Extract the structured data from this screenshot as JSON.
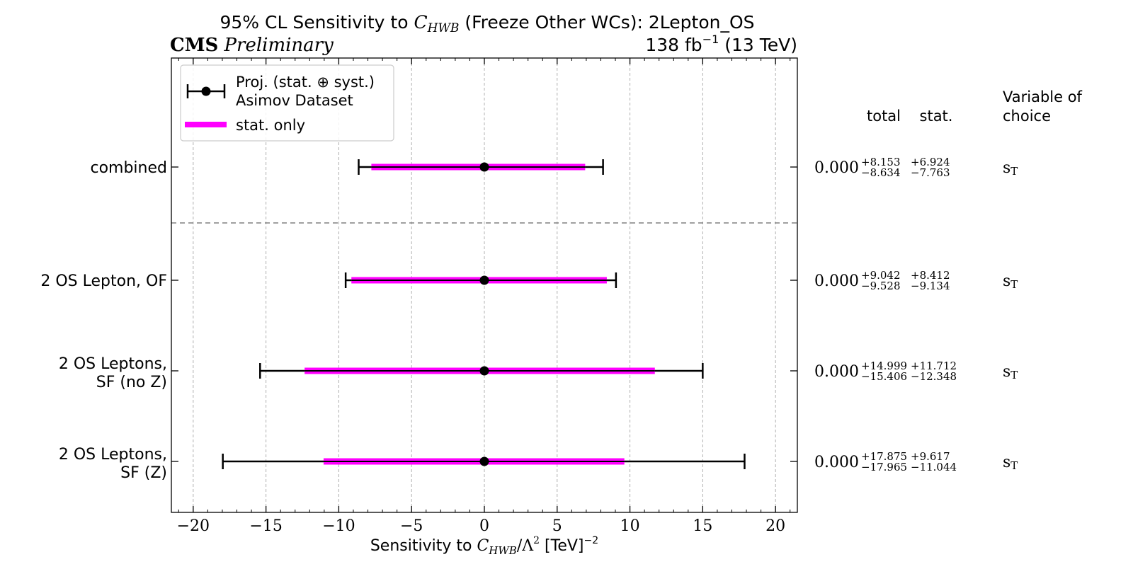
{
  "chart_data": {
    "type": "errorbar",
    "title_prefix": "95% CL Sensitivity to ",
    "title_symbol": "C",
    "title_symbol_sub": "HWB",
    "title_suffix": " (Freeze Other WCs): 2Lepton_OS",
    "experiment_label": "CMS",
    "status_label": "Preliminary",
    "lumi_value": "138 fb",
    "lumi_exponent": "−1",
    "lumi_energy": " (13 TeV)",
    "xlabel_prefix": "Sensitivity to ",
    "xlabel_symbol": "C",
    "xlabel_symbol_sub": "HWB",
    "xlabel_middle": "/Λ",
    "xlabel_power": "2",
    "xlabel_unit": " [TeV]",
    "xlabel_unit_power": "−2",
    "xlim": [
      -21.5,
      21.5
    ],
    "xticks": [
      -20,
      -15,
      -10,
      -5,
      0,
      5,
      10,
      15,
      20
    ],
    "xtick_labels": [
      "−20",
      "−15",
      "−10",
      "−5",
      "0",
      "5",
      "10",
      "15",
      "20"
    ],
    "grid": true,
    "legend": {
      "placement": "top-left",
      "proj_label_line1": "Proj. (stat. ⊕ syst.)",
      "proj_label_line2": "Asimov Dataset",
      "stat_label": "stat. only"
    },
    "table_header": {
      "total": "total",
      "stat": "stat.",
      "variable_line1": "Variable of",
      "variable_line2": "choice"
    },
    "separator_after_row": 0,
    "rows": [
      {
        "label_lines": [
          "combined"
        ],
        "center": 0.0,
        "center_label": "0.000",
        "total_up": 8.153,
        "total_down": 8.634,
        "stat_up": 6.924,
        "stat_down": 7.763,
        "total_up_label": "+8.153",
        "total_down_label": "−8.634",
        "stat_up_label": "+6.924",
        "stat_down_label": "−7.763",
        "variable": "s",
        "variable_sub": "T"
      },
      {
        "label_lines": [
          "2 OS Lepton, OF"
        ],
        "center": 0.0,
        "center_label": "0.000",
        "total_up": 9.042,
        "total_down": 9.528,
        "stat_up": 8.412,
        "stat_down": 9.134,
        "total_up_label": "+9.042",
        "total_down_label": "−9.528",
        "stat_up_label": "+8.412",
        "stat_down_label": "−9.134",
        "variable": "s",
        "variable_sub": "T"
      },
      {
        "label_lines": [
          "2 OS Leptons,",
          "SF (no Z)"
        ],
        "center": 0.0,
        "center_label": "0.000",
        "total_up": 14.999,
        "total_down": 15.406,
        "stat_up": 11.712,
        "stat_down": 12.348,
        "total_up_label": "+14.999",
        "total_down_label": "−15.406",
        "stat_up_label": "+11.712",
        "stat_down_label": "−12.348",
        "variable": "s",
        "variable_sub": "T"
      },
      {
        "label_lines": [
          "2 OS Leptons,",
          "SF (Z)"
        ],
        "center": 0.0,
        "center_label": "0.000",
        "total_up": 17.875,
        "total_down": 17.965,
        "stat_up": 9.617,
        "stat_down": 11.044,
        "total_up_label": "+17.875",
        "total_down_label": "−17.965",
        "stat_up_label": "+9.617",
        "stat_down_label": "−11.044",
        "variable": "s",
        "variable_sub": "T"
      }
    ],
    "colors": {
      "stat_band": "#ff00ff",
      "error_bar": "#000000",
      "marker": "#000000",
      "grid": "#b0b0b0",
      "separator": "#808080"
    }
  }
}
